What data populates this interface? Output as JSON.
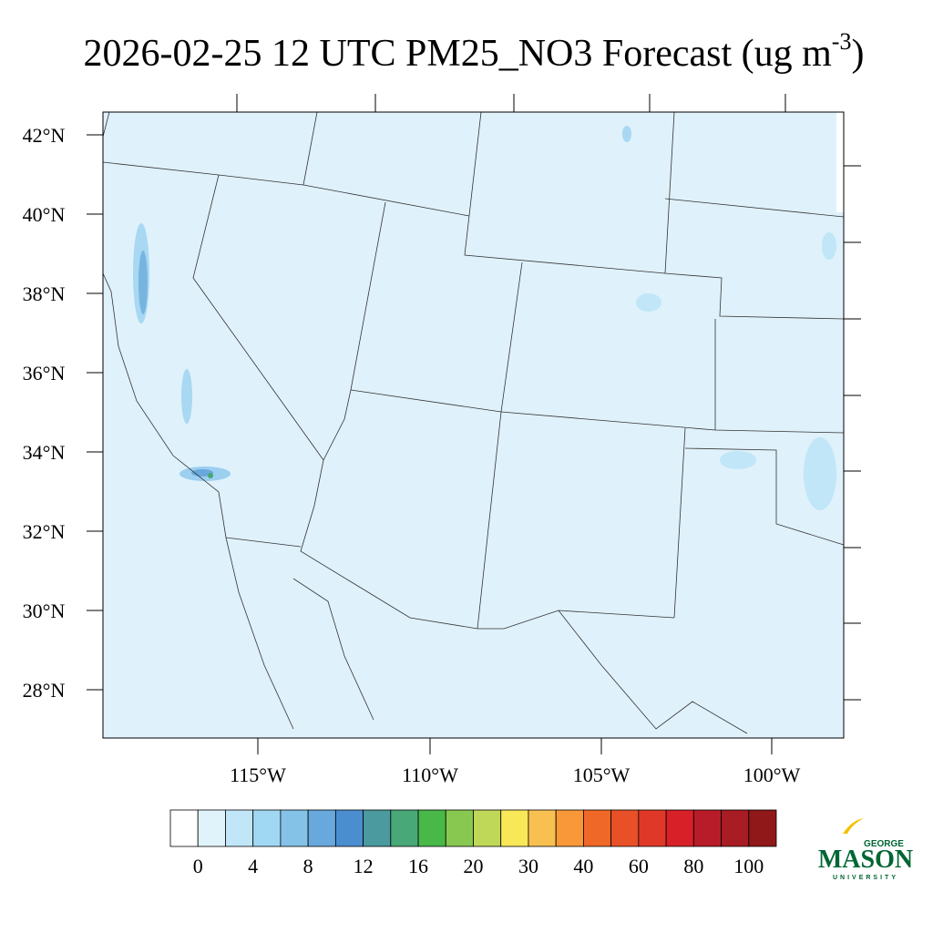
{
  "header": {
    "title": "2026-02-25 12 UTC PM25_NO3 Forecast (ug m",
    "title_superscript": "-3",
    "title_end": ")"
  },
  "map": {
    "lat_labels": [
      "42°N",
      "40°N",
      "38°N",
      "36°N",
      "34°N",
      "32°N",
      "30°N",
      "28°N"
    ],
    "lon_labels": [
      "115°W",
      "110°W",
      "105°W",
      "100°W"
    ]
  },
  "colorbar": {
    "colors": [
      "#ffffff",
      "#e0f3fb",
      "#c0e6f7",
      "#a0d8f3",
      "#84c2e8",
      "#68a8dc",
      "#4a8ed0",
      "#4a9aa0",
      "#48a878",
      "#48b848",
      "#88c850",
      "#c0d858",
      "#f8e858",
      "#f8c050",
      "#f89838",
      "#f06828",
      "#e85028",
      "#e03828",
      "#d82028",
      "#b81c28",
      "#a81c24",
      "#901818"
    ],
    "labels": [
      "0",
      "4",
      "8",
      "12",
      "16",
      "20",
      "30",
      "40",
      "60",
      "80",
      "100"
    ]
  },
  "logo": {
    "top": "GEORGE",
    "main": "MASON",
    "bottom": "UNIVERSITY"
  }
}
